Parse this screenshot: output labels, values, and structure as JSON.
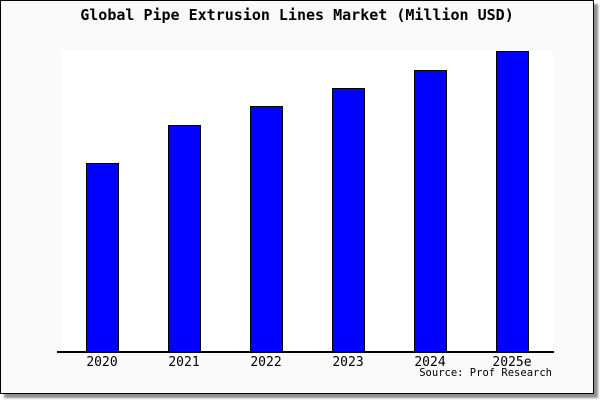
{
  "chart_data": {
    "type": "bar",
    "title": "Global Pipe Extrusion Lines Market (Million USD)",
    "categories": [
      "2020",
      "2021",
      "2022",
      "2023",
      "2024",
      "2025e"
    ],
    "values": [
      62.5,
      75.0,
      81.3,
      87.3,
      93.3,
      99.7
    ],
    "value_note": "no y-axis or data labels shown; values are relative bar heights in % of plot height",
    "xlabel": "",
    "ylabel": "",
    "ylim": [
      0,
      100
    ],
    "grid": false,
    "legend": false,
    "bar_color": "#0000ff",
    "bar_border_color": "#000000",
    "source": "Source: Prof Research"
  },
  "colors": {
    "card_background": "#fafafa",
    "plot_background": "#ffffff",
    "axis": "#000000",
    "text": "#000000",
    "shadow": "#8f8f8f"
  }
}
